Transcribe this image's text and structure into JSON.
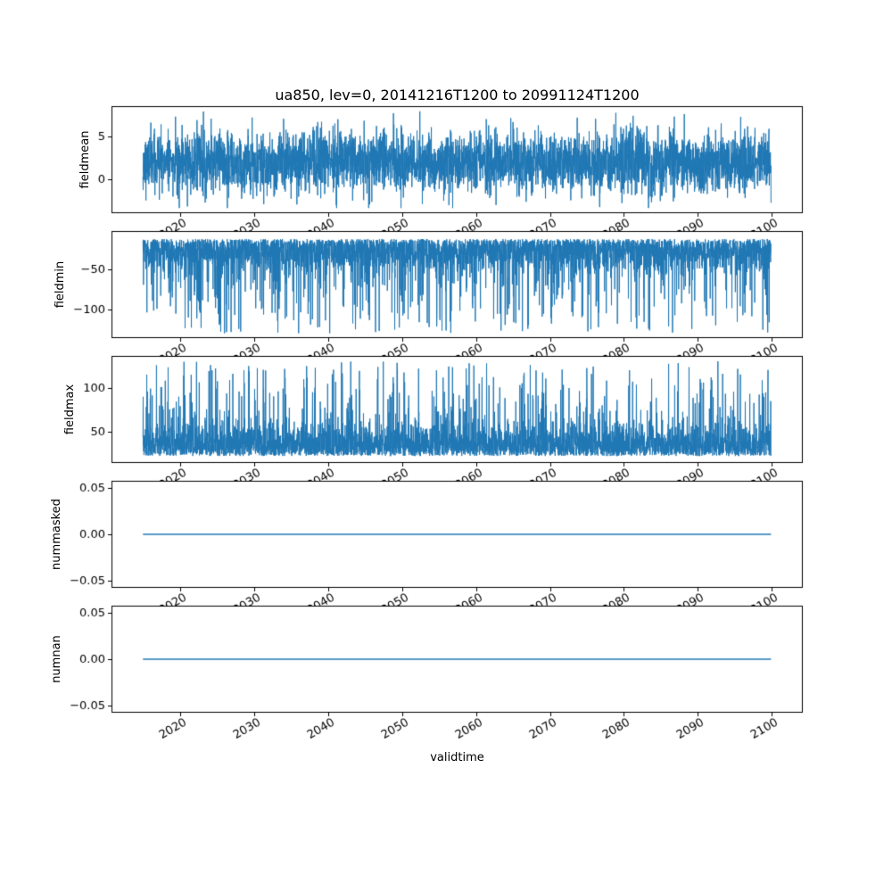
{
  "figure": {
    "title": "ua850, lev=0, 20141216T1200 to 20991124T1200",
    "xlabel": "validtime",
    "background": "#ffffff",
    "line_color": "#1f77b4",
    "frame_color": "#000000",
    "text_color": "#000000",
    "xlim": [
      2010.7,
      2104.2
    ],
    "x_data_range": [
      2014.96,
      2099.9
    ],
    "xticks": {
      "values": [
        2020,
        2030,
        2040,
        2050,
        2060,
        2070,
        2080,
        2090,
        2100
      ],
      "labels": [
        "2020",
        "2030",
        "2040",
        "2050",
        "2060",
        "2070",
        "2080",
        "2090",
        "2100"
      ],
      "rotation_deg": 30
    }
  },
  "chart_data": [
    {
      "type": "line",
      "ylabel": "fieldmean",
      "ylim": [
        -3.9,
        8.5
      ],
      "yticks": {
        "values": [
          5,
          0
        ],
        "labels": [
          "5",
          "0"
        ]
      },
      "series": {
        "name": "fieldmean",
        "kind": "noisy",
        "n": 4000,
        "seed": 11,
        "base": 2.0,
        "band_std": 1.7,
        "direction": 0,
        "spike_prob": 0.01,
        "spike_lo": 3.5,
        "spike_hi": 5.9,
        "clip": [
          -3.3,
          7.9
        ]
      }
    },
    {
      "type": "line",
      "ylabel": "fieldmin",
      "ylim": [
        -136,
        -2
      ],
      "yticks": {
        "values": [
          -50,
          -100
        ],
        "labels": [
          "−50",
          "−100"
        ]
      },
      "series": {
        "name": "fieldmin",
        "kind": "noisy",
        "n": 4000,
        "seed": 22,
        "base": -12,
        "band_std": 20,
        "direction": -1,
        "spike_prob": 0.08,
        "spike_lo": 50,
        "spike_hi": 118,
        "clip": [
          -130,
          -8
        ]
      }
    },
    {
      "type": "line",
      "ylabel": "fieldmax",
      "ylim": [
        14,
        137
      ],
      "yticks": {
        "values": [
          100,
          50
        ],
        "labels": [
          "100",
          "50"
        ]
      },
      "series": {
        "name": "fieldmax",
        "kind": "noisy",
        "n": 4000,
        "seed": 33,
        "base": 22,
        "band_std": 18,
        "direction": 1,
        "spike_prob": 0.08,
        "spike_lo": 35,
        "spike_hi": 109,
        "clip": [
          20,
          131
        ]
      }
    },
    {
      "type": "line",
      "ylabel": "nummasked",
      "ylim": [
        -0.0575,
        0.0575
      ],
      "yticks": {
        "values": [
          0.05,
          0.0,
          -0.05
        ],
        "labels": [
          "0.05",
          "0.00",
          "−0.05"
        ]
      },
      "series": {
        "name": "nummasked",
        "kind": "constant",
        "value": 0.0
      }
    },
    {
      "type": "line",
      "ylabel": "numnan",
      "ylim": [
        -0.0575,
        0.0575
      ],
      "yticks": {
        "values": [
          0.05,
          0.0,
          -0.05
        ],
        "labels": [
          "0.05",
          "0.00",
          "−0.05"
        ]
      },
      "series": {
        "name": "numnan",
        "kind": "constant",
        "value": 0.0
      }
    }
  ]
}
